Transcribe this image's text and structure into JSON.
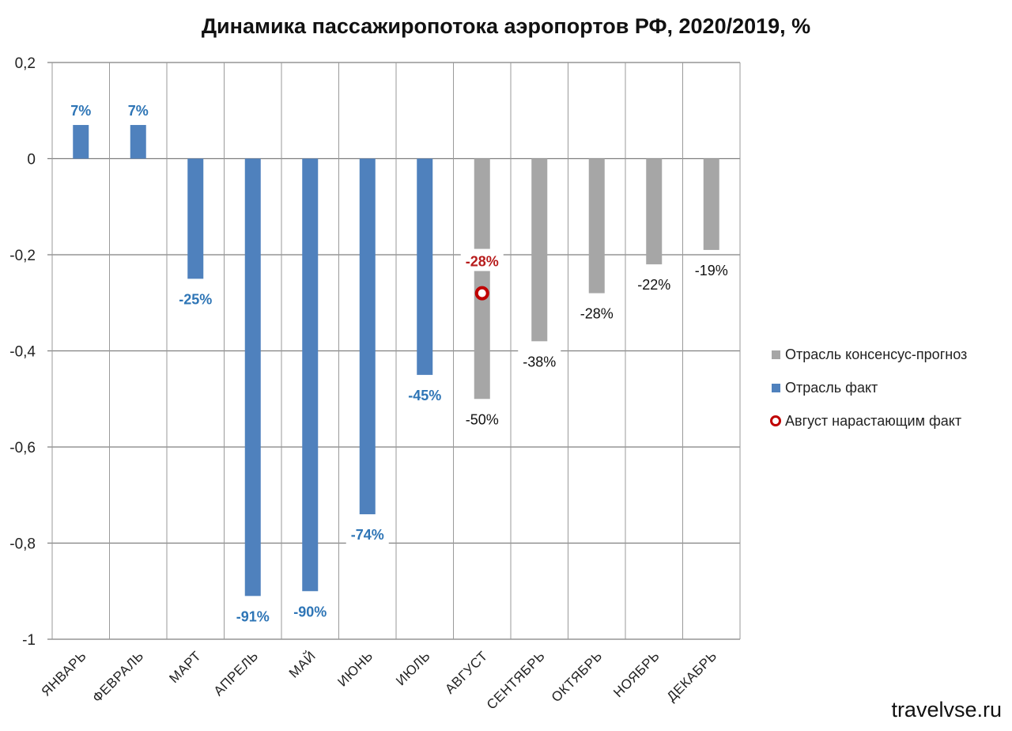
{
  "chart_data": {
    "type": "bar",
    "title": "Динамика пассажиропотока аэропортов РФ, 2020/2019, %",
    "categories": [
      "ЯНВАРЬ",
      "ФЕВРАЛЬ",
      "МАРТ",
      "АПРЕЛЬ",
      "МАЙ",
      "ИЮНЬ",
      "ИЮЛЬ",
      "АВГУСТ",
      "СЕНТЯБРЬ",
      "ОКТЯБРЬ",
      "НОЯБРЬ",
      "ДЕКАБРЬ"
    ],
    "ylim": [
      -1,
      0.2
    ],
    "yticks": [
      "0,2",
      "0",
      "-0,2",
      "-0,4",
      "-0,6",
      "-0,8",
      "-1"
    ],
    "ytick_values": [
      0.2,
      0,
      -0.2,
      -0.4,
      -0.6,
      -0.8,
      -1
    ],
    "grid": true,
    "legend_position": "right",
    "series": [
      {
        "name": "Отрасль консенсус-прогноз",
        "color": "#a6a6a6",
        "values": [
          null,
          null,
          null,
          null,
          null,
          null,
          null,
          -0.5,
          -0.38,
          -0.28,
          -0.22,
          -0.19
        ],
        "labels": [
          "",
          "",
          "",
          "",
          "",
          "",
          "",
          "-50%",
          "-38%",
          "-28%",
          "-22%",
          "-19%"
        ]
      },
      {
        "name": "Отрасль факт",
        "color": "#4f81bd",
        "values": [
          0.07,
          0.07,
          -0.25,
          -0.91,
          -0.9,
          -0.74,
          -0.45,
          null,
          null,
          null,
          null,
          null
        ],
        "labels": [
          "7%",
          "7%",
          "-25%",
          "-91%",
          "-90%",
          "-74%",
          "-45%",
          "",
          "",
          "",
          "",
          ""
        ]
      },
      {
        "name": "Август нарастающим факт",
        "color": "#c00000",
        "type": "marker",
        "category": "АВГУСТ",
        "value": -0.28,
        "label": "-28%"
      }
    ]
  },
  "watermark": "travelvse.ru"
}
